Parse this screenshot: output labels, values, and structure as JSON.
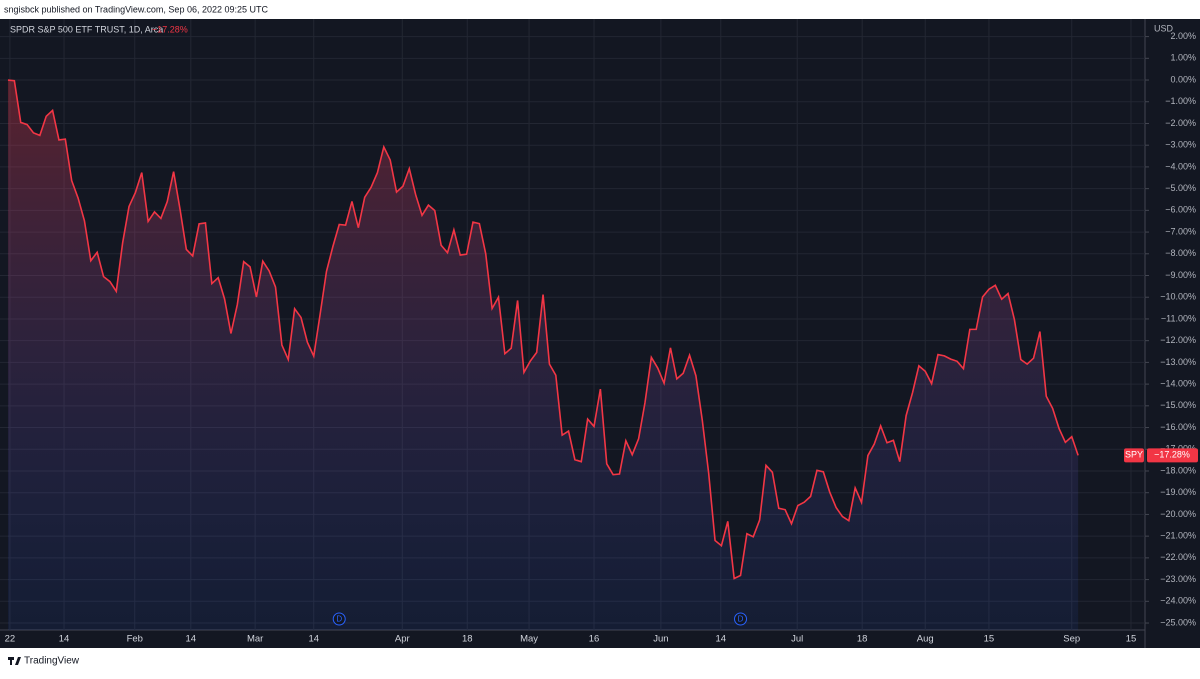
{
  "published": "sngisbck published on TradingView.com, Sep 06, 2022 09:25 UTC",
  "brand": "TradingView",
  "chart_data": {
    "type": "line",
    "title": "SPDR S&P 500 ETF TRUST, 1D, Arca",
    "currency": "USD",
    "grid": true,
    "background": "#131722",
    "series": [
      {
        "name": "SPY",
        "color": "#f23645",
        "last_value_label": "−17.28%",
        "values": [
          0,
          -0.03,
          -1.95,
          -2.05,
          -2.43,
          -2.55,
          -1.67,
          -1.4,
          -2.76,
          -2.72,
          -4.63,
          -5.43,
          -6.48,
          -8.32,
          -7.93,
          -9.05,
          -9.28,
          -9.73,
          -7.49,
          -5.82,
          -5.18,
          -4.26,
          -6.51,
          -6.07,
          -6.37,
          -5.6,
          -4.22,
          -5.94,
          -7.8,
          -8.1,
          -6.62,
          -6.58,
          -9.37,
          -9.1,
          -10.08,
          -11.67,
          -10.34,
          -8.36,
          -8.6,
          -9.99,
          -8.34,
          -8.79,
          -9.53,
          -12.2,
          -12.87,
          -10.53,
          -10.93,
          -12.07,
          -12.71,
          -10.79,
          -8.81,
          -7.67,
          -6.65,
          -6.68,
          -5.59,
          -6.8,
          -5.4,
          -4.94,
          -4.26,
          -3.08,
          -3.68,
          -5.16,
          -4.89,
          -4.08,
          -5.28,
          -6.23,
          -5.76,
          -6.01,
          -7.61,
          -7.95,
          -6.9,
          -8.06,
          -8.02,
          -6.54,
          -6.61,
          -8.0,
          -10.52,
          -10.0,
          -12.6,
          -12.35,
          -10.15,
          -13.46,
          -12.94,
          -12.54,
          -9.88,
          -13.08,
          -13.59,
          -16.35,
          -16.16,
          -17.48,
          -17.57,
          -15.61,
          -15.95,
          -14.23,
          -17.67,
          -18.17,
          -18.14,
          -16.61,
          -17.25,
          -16.52,
          -14.86,
          -12.77,
          -13.26,
          -13.96,
          -12.33,
          -13.76,
          -13.5,
          -12.67,
          -13.62,
          -15.67,
          -18.1,
          -21.2,
          -21.44,
          -20.32,
          -22.95,
          -22.81,
          -20.89,
          -21.03,
          -20.26,
          -17.74,
          -18.06,
          -19.72,
          -19.78,
          -20.43,
          -19.59,
          -19.44,
          -19.17,
          -17.97,
          -18.04,
          -18.97,
          -19.68,
          -20.1,
          -20.29,
          -18.78,
          -19.45,
          -17.29,
          -16.76,
          -15.92,
          -16.7,
          -16.59,
          -17.57,
          -15.45,
          -14.4,
          -13.16,
          -13.41,
          -13.98,
          -12.64,
          -12.7,
          -12.85,
          -12.95,
          -13.29,
          -11.48,
          -11.48,
          -9.99,
          -9.63,
          -9.45,
          -10.09,
          -9.83,
          -11.03,
          -12.87,
          -13.08,
          -12.81,
          -11.58,
          -14.56,
          -15.12,
          -16.04,
          -16.68,
          -16.42,
          -17.28
        ]
      }
    ],
    "events": [
      {
        "x": 52,
        "label": "D"
      },
      {
        "x": 115,
        "label": "D"
      }
    ],
    "xlim": [
      -0.47,
      178.5
    ],
    "xticks": [
      {
        "value": 0.3,
        "label": "22"
      },
      {
        "value": 8.8,
        "label": "14"
      },
      {
        "value": 19.9,
        "label": "Feb"
      },
      {
        "value": 28.7,
        "label": "14"
      },
      {
        "value": 38.8,
        "label": "Mar"
      },
      {
        "value": 48.0,
        "label": "14"
      },
      {
        "value": 61.9,
        "label": "Apr"
      },
      {
        "value": 72.1,
        "label": "18"
      },
      {
        "value": 81.8,
        "label": "May"
      },
      {
        "value": 92.0,
        "label": "16"
      },
      {
        "value": 102.5,
        "label": "Jun"
      },
      {
        "value": 111.9,
        "label": "14"
      },
      {
        "value": 123.9,
        "label": "Jul"
      },
      {
        "value": 134.1,
        "label": "18"
      },
      {
        "value": 144.0,
        "label": "Aug"
      },
      {
        "value": 154.0,
        "label": "15"
      },
      {
        "value": 167.0,
        "label": "Sep"
      },
      {
        "value": 176.3,
        "label": "15"
      }
    ],
    "ylim": [
      -26.15,
      2.81
    ],
    "yticks": [
      {
        "value": 2,
        "label": "2.00%"
      },
      {
        "value": 1,
        "label": "1.00%"
      },
      {
        "value": 0,
        "label": "0.00%"
      },
      {
        "value": -1,
        "label": "−1.00%"
      },
      {
        "value": -2,
        "label": "−2.00%"
      },
      {
        "value": -3,
        "label": "−3.00%"
      },
      {
        "value": -4,
        "label": "−4.00%"
      },
      {
        "value": -5,
        "label": "−5.00%"
      },
      {
        "value": -6,
        "label": "−6.00%"
      },
      {
        "value": -7,
        "label": "−7.00%"
      },
      {
        "value": -8,
        "label": "−8.00%"
      },
      {
        "value": -9,
        "label": "−9.00%"
      },
      {
        "value": -10,
        "label": "−10.00%"
      },
      {
        "value": -11,
        "label": "−11.00%"
      },
      {
        "value": -12,
        "label": "−12.00%"
      },
      {
        "value": -13,
        "label": "−13.00%"
      },
      {
        "value": -14,
        "label": "−14.00%"
      },
      {
        "value": -15,
        "label": "−15.00%"
      },
      {
        "value": -16,
        "label": "−16.00%"
      },
      {
        "value": -17,
        "label": "−17.00%"
      },
      {
        "value": -18,
        "label": "−18.00%"
      },
      {
        "value": -19,
        "label": "−19.00%"
      },
      {
        "value": -20,
        "label": "−20.00%"
      },
      {
        "value": -21,
        "label": "−21.00%"
      },
      {
        "value": -22,
        "label": "−22.00%"
      },
      {
        "value": -23,
        "label": "−23.00%"
      },
      {
        "value": -24,
        "label": "−24.00%"
      },
      {
        "value": -25,
        "label": "−25.00%"
      }
    ]
  }
}
